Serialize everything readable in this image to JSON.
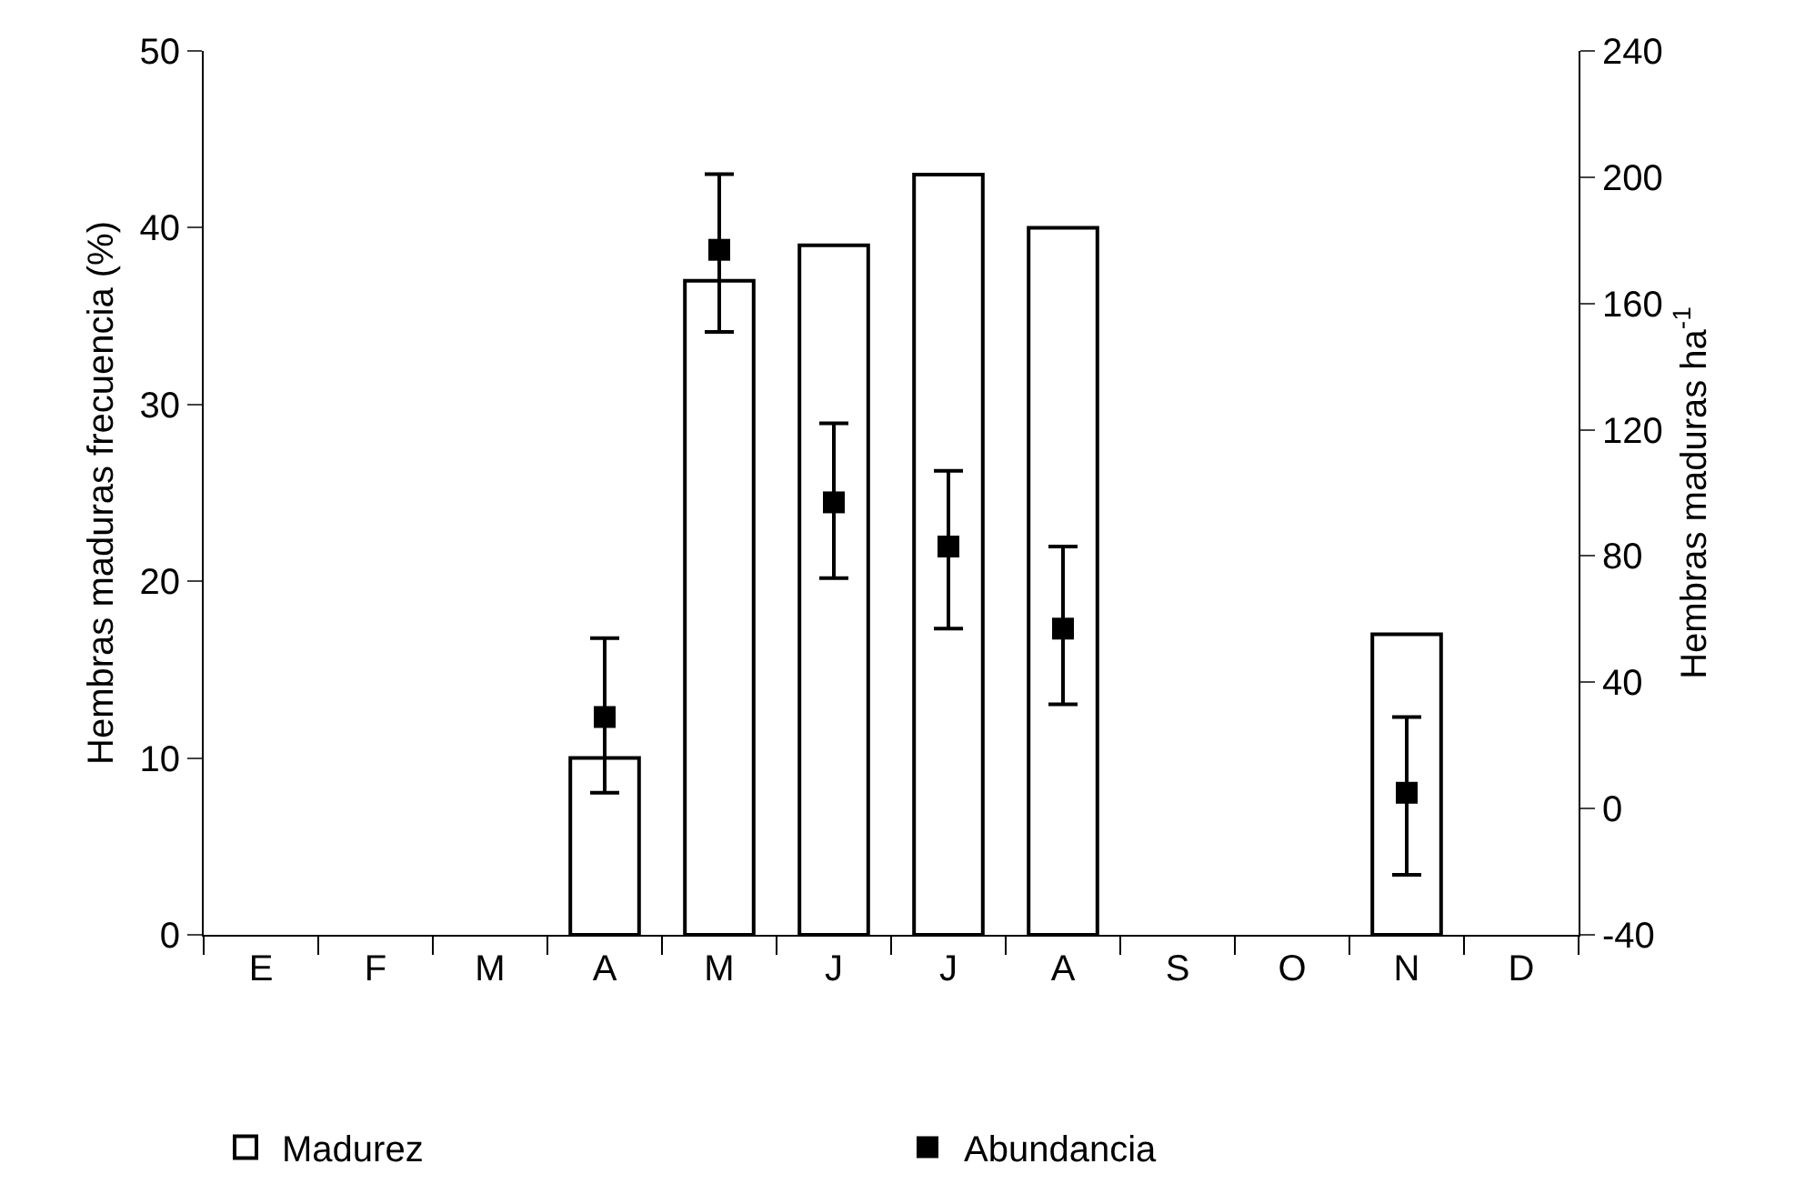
{
  "chart_data": {
    "type": "bar",
    "categories": [
      "E",
      "F",
      "M",
      "A",
      "M",
      "J",
      "J",
      "A",
      "S",
      "O",
      "N",
      "D"
    ],
    "ylabel": "Hembras maduras frecuencia (%)",
    "y2label": "Hembras maduras ha$^{-1}$",
    "series": [
      {
        "name": "Madurez",
        "color": "#ffffff",
        "values": [
          null,
          null,
          null,
          10,
          37,
          39,
          43,
          40,
          null,
          null,
          17,
          null
        ]
      },
      {
        "name": "Abundancia",
        "type": "scatter",
        "axis": "y2",
        "color": "#000000",
        "marker": "square",
        "values": [
          null,
          null,
          null,
          29,
          177,
          97,
          83,
          57,
          null,
          null,
          5,
          null
        ],
        "errors": [
          null,
          null,
          null,
          [
            5,
            54
          ],
          [
            151,
            201
          ],
          [
            73,
            122
          ],
          [
            57,
            107
          ],
          [
            33,
            83
          ],
          null,
          null,
          [
            -21,
            29
          ],
          null
        ]
      }
    ],
    "ylim": [
      0,
      50
    ],
    "yticks": [
      0,
      10,
      20,
      30,
      40,
      50
    ],
    "y2lim": [
      -40,
      240
    ],
    "y2ticks": [
      -40,
      0,
      40,
      80,
      120,
      160,
      200,
      240
    ],
    "grid": false,
    "legend": "bottom"
  }
}
